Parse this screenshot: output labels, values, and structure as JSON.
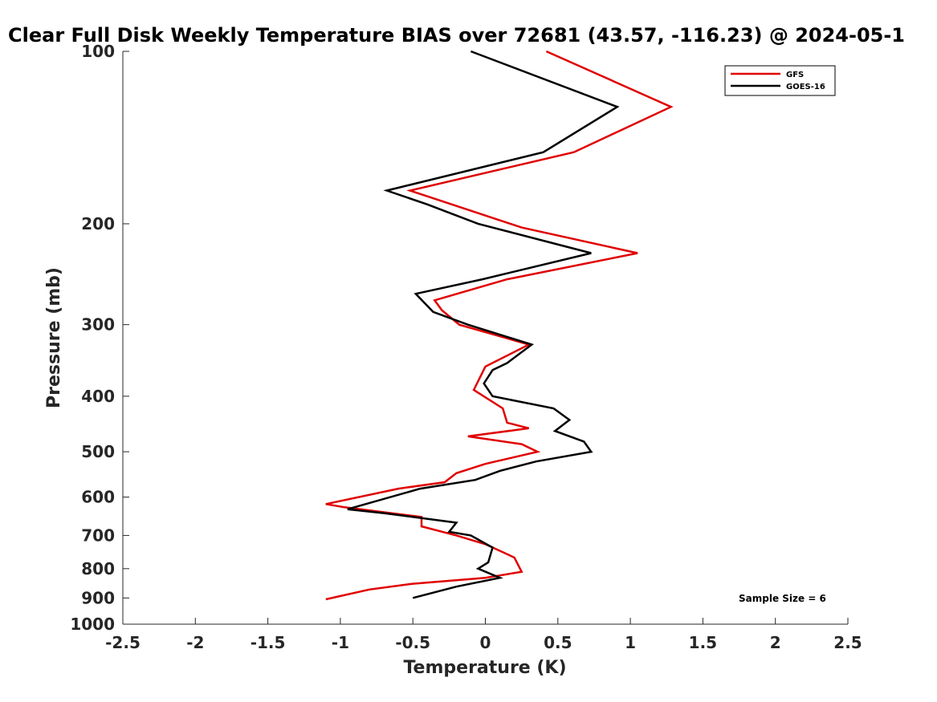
{
  "chart_data": {
    "type": "line",
    "title": "Clear Full Disk Weekly Temperature BIAS over 72681 (43.57, -116.23) @ 2024-05-1",
    "xlabel": "Temperature (K)",
    "ylabel": "Pressure (mb)",
    "xlim": [
      -2.5,
      2.5
    ],
    "ylim": [
      1000,
      100
    ],
    "y_scale": "log",
    "x_ticks": [
      "-2.5",
      "-2",
      "-1.5",
      "-1",
      "-0.5",
      "0",
      "0.5",
      "1",
      "1.5",
      "2",
      "2.5"
    ],
    "y_ticks": [
      "100",
      "200",
      "300",
      "400",
      "500",
      "600",
      "700",
      "800",
      "900",
      "1000"
    ],
    "legend_position": "top-right",
    "grid": false,
    "annotation": "Sample Size = 6",
    "series": [
      {
        "name": "GFS",
        "color": "#e00000",
        "points": [
          [
            0.42,
            100
          ],
          [
            1.28,
            125
          ],
          [
            0.61,
            150
          ],
          [
            -0.52,
            175
          ],
          [
            0.25,
            203
          ],
          [
            1.05,
            225
          ],
          [
            0.15,
            250
          ],
          [
            -0.35,
            272
          ],
          [
            -0.3,
            283
          ],
          [
            -0.18,
            300
          ],
          [
            0.3,
            325
          ],
          [
            0.0,
            355
          ],
          [
            -0.08,
            390
          ],
          [
            0.12,
            420
          ],
          [
            0.15,
            445
          ],
          [
            0.3,
            455
          ],
          [
            -0.12,
            470
          ],
          [
            0.25,
            485
          ],
          [
            0.36,
            500
          ],
          [
            0.0,
            525
          ],
          [
            -0.2,
            545
          ],
          [
            -0.28,
            565
          ],
          [
            -0.6,
            580
          ],
          [
            -1.1,
            617
          ],
          [
            -0.97,
            625
          ],
          [
            -0.44,
            650
          ],
          [
            -0.44,
            675
          ],
          [
            -0.2,
            700
          ],
          [
            0.0,
            725
          ],
          [
            0.2,
            765
          ],
          [
            0.25,
            810
          ],
          [
            0.0,
            830
          ],
          [
            -0.5,
            850
          ],
          [
            -0.8,
            870
          ],
          [
            -1.1,
            905
          ]
        ]
      },
      {
        "name": "GOES-16",
        "color": "#000000",
        "points": [
          [
            -0.1,
            100
          ],
          [
            0.91,
            125
          ],
          [
            0.4,
            150
          ],
          [
            -0.68,
            175
          ],
          [
            -0.4,
            185
          ],
          [
            -0.05,
            200
          ],
          [
            0.73,
            225
          ],
          [
            -0.02,
            250
          ],
          [
            -0.48,
            265
          ],
          [
            -0.36,
            285
          ],
          [
            -0.12,
            300
          ],
          [
            0.32,
            325
          ],
          [
            0.15,
            350
          ],
          [
            0.05,
            360
          ],
          [
            -0.01,
            380
          ],
          [
            0.05,
            400
          ],
          [
            0.47,
            420
          ],
          [
            0.58,
            440
          ],
          [
            0.48,
            460
          ],
          [
            0.68,
            480
          ],
          [
            0.73,
            500
          ],
          [
            0.35,
            520
          ],
          [
            0.1,
            540
          ],
          [
            -0.07,
            560
          ],
          [
            -0.45,
            580
          ],
          [
            -0.95,
            630
          ],
          [
            -0.7,
            640
          ],
          [
            -0.2,
            665
          ],
          [
            -0.25,
            690
          ],
          [
            -0.1,
            700
          ],
          [
            0.05,
            735
          ],
          [
            0.02,
            780
          ],
          [
            -0.05,
            800
          ],
          [
            0.1,
            830
          ],
          [
            -0.2,
            860
          ],
          [
            -0.5,
            900
          ]
        ]
      }
    ]
  }
}
